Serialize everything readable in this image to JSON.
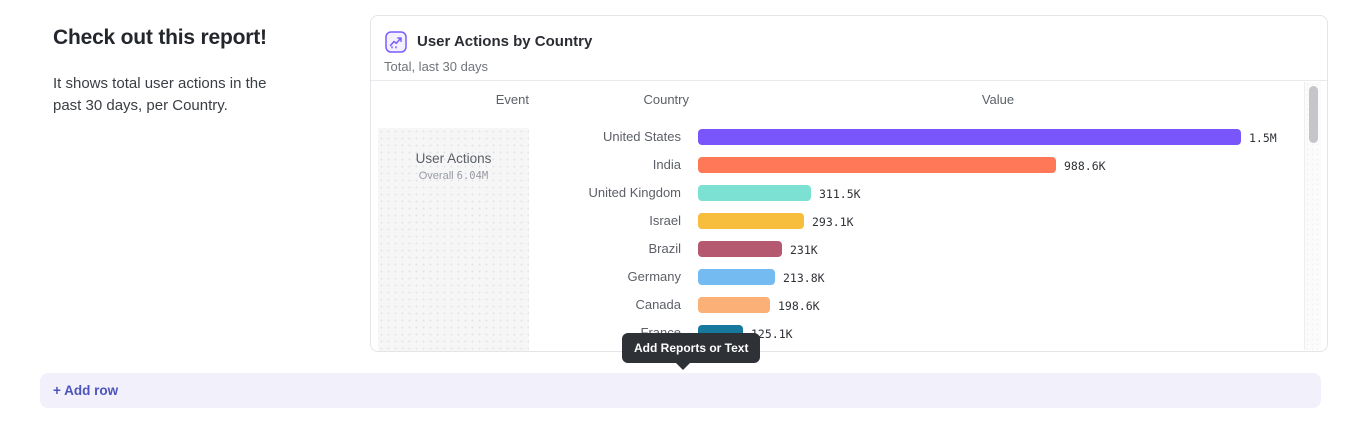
{
  "page": {
    "heading": "Check out this report!",
    "description": "It shows total user actions in the past 30 days, per Country.",
    "tooltip": "Add Reports or Text",
    "add_row_label": "+ Add row"
  },
  "card": {
    "title": "User Actions by Country",
    "subtitle": "Total, last 30 days",
    "icon": "line-chart-icon",
    "columns": [
      "Event",
      "Country",
      "Value"
    ],
    "event": {
      "name": "User Actions",
      "overall_label": "Overall",
      "overall_value": "6.04M"
    }
  },
  "chart_data": {
    "type": "bar",
    "orientation": "horizontal",
    "title": "User Actions by Country",
    "period": "Total, last 30 days",
    "series_name": "User Actions",
    "overall_total": "6.04M",
    "categories": [
      "United States",
      "India",
      "United Kingdom",
      "Israel",
      "Brazil",
      "Germany",
      "Canada",
      "France"
    ],
    "values": [
      1500000,
      988600,
      311500,
      293100,
      231000,
      213800,
      198600,
      125100
    ],
    "value_labels": [
      "1.5M",
      "988.6K",
      "311.5K",
      "293.1K",
      "231K",
      "213.8K",
      "198.6K",
      "125.1K"
    ],
    "colors": [
      "#7856FC",
      "#FF7857",
      "#7CE0D3",
      "#F7BE3D",
      "#B55971",
      "#73BBF1",
      "#FBB078",
      "#17789D"
    ],
    "xlim": [
      0,
      1500000
    ],
    "legend": false,
    "grid": false
  },
  "colors": {
    "accent_purple": "#7B5CFF",
    "card_border": "#E3E5E9",
    "tooltip_bg": "#2E3136",
    "add_row_bg": "#F2F1FB",
    "add_row_text": "#4B54BB"
  }
}
